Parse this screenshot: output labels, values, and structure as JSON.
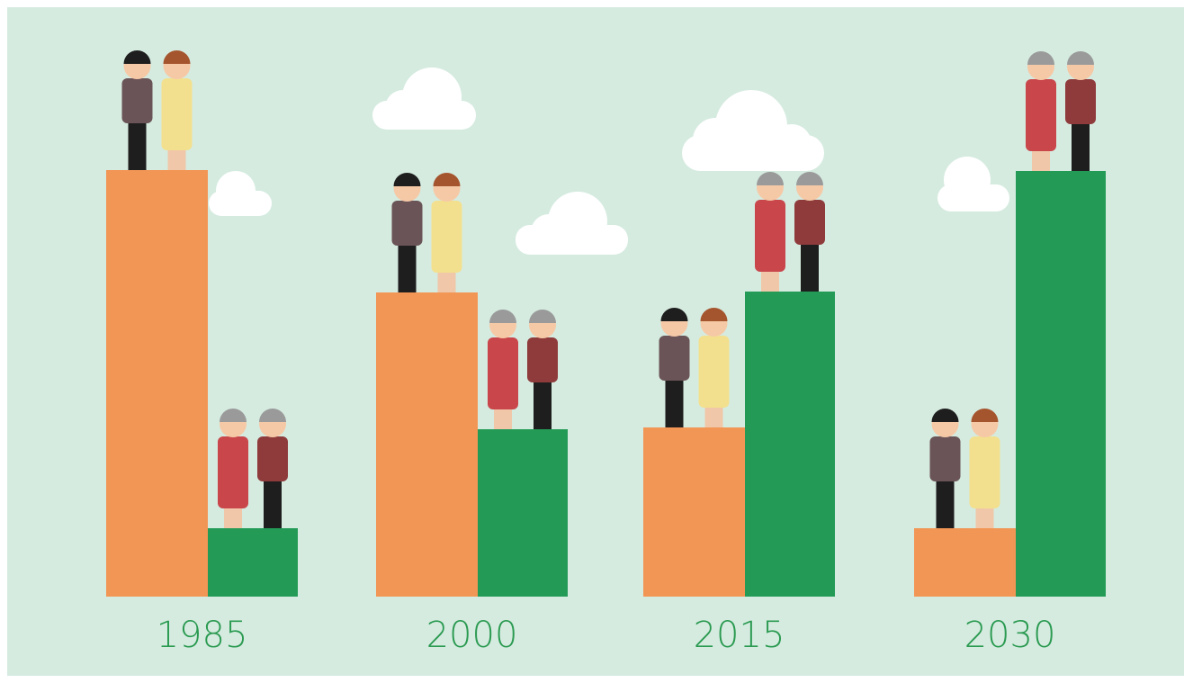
{
  "chart_data": {
    "type": "bar",
    "categories": [
      "1985",
      "2000",
      "2015",
      "2030"
    ],
    "series": [
      {
        "color": "#f29655",
        "values": [
          474,
          338,
          188,
          76
        ]
      },
      {
        "color": "#239b57",
        "values": [
          76,
          186,
          339,
          473
        ]
      }
    ],
    "ylim": [
      0,
      500
    ]
  }
}
